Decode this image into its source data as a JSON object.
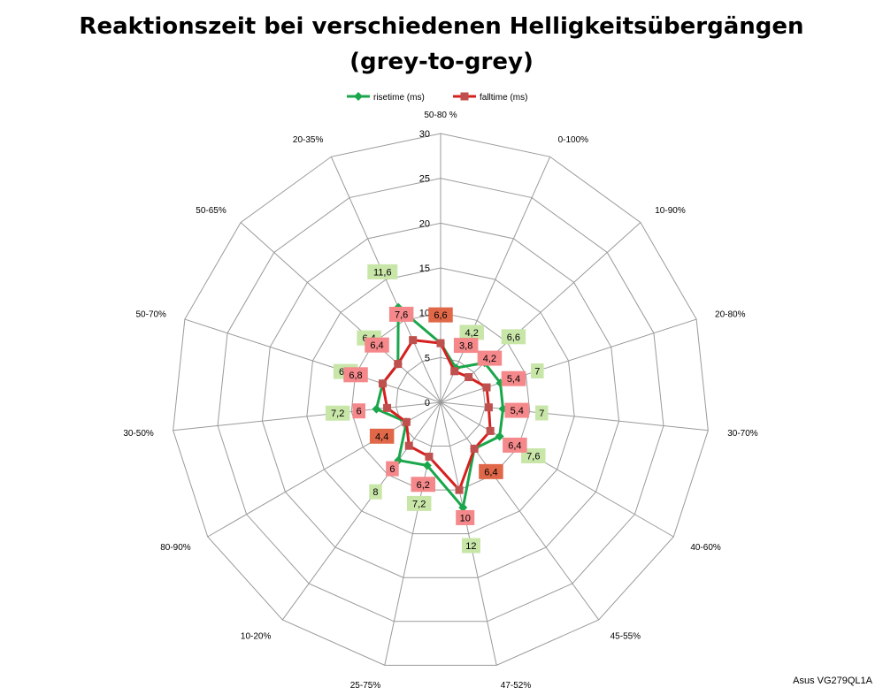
{
  "title_line1": "Reaktionszeit bei verschiedenen Helligkeitsübergängen",
  "title_line2": "(grey-to-grey)",
  "credit": "Asus VG279QL1A",
  "colors": {
    "rise": "#1aa64b",
    "fall": "#d62020",
    "rise_label_bg": "#c9e6a9",
    "fall_label_bg": "#f4888a",
    "fall_label_bg_dark": "#e06848",
    "grid": "#9a9a9a"
  },
  "chart_data": {
    "type": "radar",
    "title": "Reaktionszeit bei verschiedenen Helligkeitsübergängen (grey-to-grey)",
    "categories": [
      "50-80 %",
      "0-100%",
      "10-90%",
      "20-80%",
      "30-70%",
      "40-60%",
      "45-55%",
      "47-52%",
      "25-75%",
      "10-20%",
      "80-90%",
      "30-50%",
      "50-70%",
      "50-65%",
      "20-35%"
    ],
    "ticks": [
      0,
      5,
      10,
      15,
      20,
      25,
      30
    ],
    "ylim": [
      0,
      30
    ],
    "legend_position": "top",
    "grid": true,
    "series": [
      {
        "name": "risetime (ms)",
        "values": [
          6.6,
          4.2,
          6.6,
          7,
          7,
          7.6,
          6.4,
          12,
          7.2,
          8,
          4.4,
          7.2,
          6.8,
          6.4,
          11.6
        ],
        "labels": [
          "",
          "4,2",
          "6,6",
          "7",
          "7",
          "7,6",
          "",
          "12",
          "7,2",
          "8",
          "",
          "7,2",
          "6,8",
          "6,4",
          "11,6"
        ]
      },
      {
        "name": "falltime (ms)",
        "values": [
          6.6,
          3.8,
          4.2,
          5.4,
          5.4,
          6.4,
          6.4,
          10,
          6.2,
          6,
          4.4,
          6,
          6.8,
          6.4,
          7.6
        ],
        "labels": [
          "6,6",
          "3,8",
          "4,2",
          "5,4",
          "5,4",
          "6,4",
          "6,4",
          "10",
          "6,2",
          "6",
          "4,4",
          "6",
          "6,8",
          "6,4",
          "7,6"
        ]
      }
    ]
  }
}
